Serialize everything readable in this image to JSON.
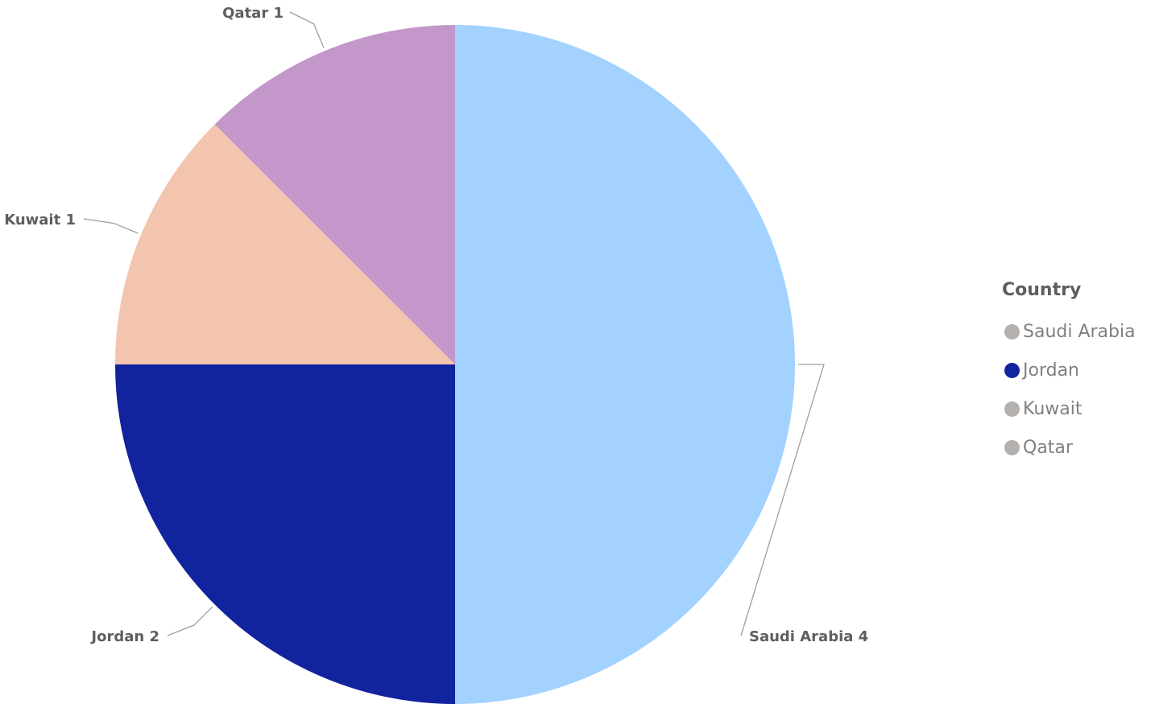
{
  "chart_data": {
    "type": "pie",
    "categories": [
      "Saudi Arabia",
      "Jordan",
      "Kuwait",
      "Qatar"
    ],
    "values": [
      4,
      2,
      1,
      1
    ],
    "data_labels": [
      "Saudi Arabia 4",
      "Jordan 2",
      "Kuwait 1",
      "Qatar 1"
    ],
    "colors": [
      "#a3d2ff",
      "#12239e",
      "#f3c4ae",
      "#c497ca"
    ],
    "start_angle_deg": 0,
    "direction": "clockwise",
    "legend": {
      "title": "Country",
      "position": "right",
      "items": [
        {
          "label": "Saudi Arabia",
          "marker_color": "#b3b0ad"
        },
        {
          "label": "Jordan",
          "marker_color": "#12239e"
        },
        {
          "label": "Kuwait",
          "marker_color": "#b3b0ad"
        },
        {
          "label": "Qatar",
          "marker_color": "#b3b0ad"
        }
      ]
    }
  }
}
